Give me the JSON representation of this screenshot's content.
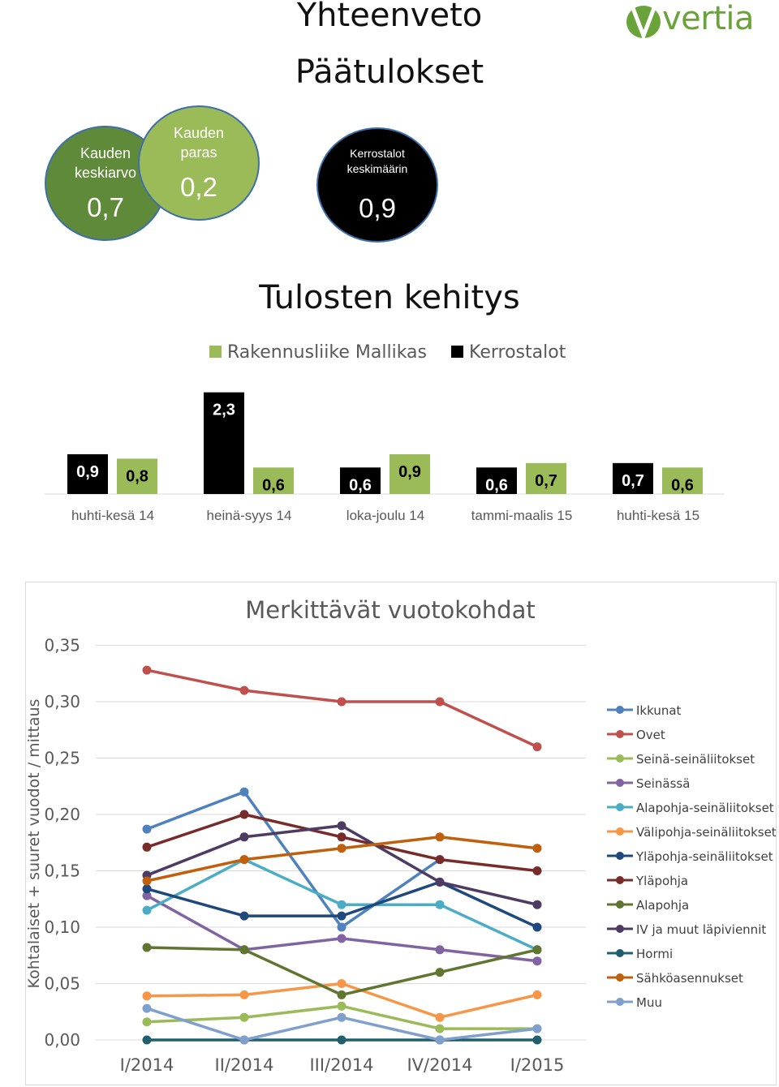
{
  "header": {
    "title": "Yhteenveto",
    "subtitle": "Päätulokset",
    "logo_text": "vertia",
    "brand_color": "#6aa339"
  },
  "circles": {
    "avg": {
      "label_line1": "Kauden",
      "label_line2": "keskiarvo",
      "value": "0,7"
    },
    "best": {
      "label_line1": "Kauden",
      "label_line2": "paras",
      "value": "0,2"
    },
    "kerrostalot": {
      "label_line1": "Kerrostalot",
      "label_line2": "keskimäärin",
      "value": "0,9"
    }
  },
  "chart_data": [
    {
      "type": "bar",
      "title": "Tulosten kehitys",
      "categories": [
        "huhti-kesä 14",
        "heinä-syys 14",
        "loka-joulu 14",
        "tammi-maalis 15",
        "huhti-kesä 15"
      ],
      "series": [
        {
          "name": "Kerrostalot",
          "color": "#000000",
          "values": [
            0.9,
            2.3,
            0.6,
            0.6,
            0.7
          ],
          "labels": [
            "0,9",
            "2,3",
            "0,6",
            "0,6",
            "0,7"
          ]
        },
        {
          "name": "Rakennusliike Mallikas",
          "color": "#9bbb59",
          "values": [
            0.8,
            0.6,
            0.9,
            0.7,
            0.6
          ],
          "labels": [
            "0,8",
            "0,6",
            "0,9",
            "0,7",
            "0,6"
          ]
        }
      ],
      "legend": "top",
      "ylim": [
        0,
        3.2
      ]
    },
    {
      "type": "line",
      "title": "Merkittävät vuotokohdat",
      "ylabel": "Kohtalaiset + suuret vuodot / mittaus",
      "xlabel": "",
      "categories": [
        "I/2014",
        "II/2014",
        "III/2014",
        "IV/2014",
        "I/2015"
      ],
      "ylim": [
        0,
        0.35
      ],
      "yticks": [
        "0,00",
        "0,05",
        "0,10",
        "0,15",
        "0,20",
        "0,25",
        "0,30",
        "0,35"
      ],
      "grid": true,
      "legend": "right",
      "series": [
        {
          "name": "Ikkunat",
          "color": "#4f81bd",
          "values": [
            0.187,
            0.22,
            0.1,
            0.16,
            null
          ]
        },
        {
          "name": "Ovet",
          "color": "#c0504d",
          "values": [
            0.328,
            0.31,
            0.3,
            0.3,
            0.26
          ]
        },
        {
          "name": "Seinä-seinäliitokset",
          "color": "#9bbb59",
          "values": [
            0.016,
            0.02,
            0.03,
            0.01,
            0.01
          ]
        },
        {
          "name": "Seinässä",
          "color": "#8064a2",
          "values": [
            0.128,
            0.08,
            0.09,
            0.08,
            0.07
          ]
        },
        {
          "name": "Alapohja-seinäliitokset",
          "color": "#4bacc6",
          "values": [
            0.115,
            0.16,
            0.12,
            0.12,
            0.08
          ]
        },
        {
          "name": "Välipohja-seinäliitokset",
          "color": "#f79646",
          "values": [
            0.039,
            0.04,
            0.05,
            0.02,
            0.04
          ]
        },
        {
          "name": "Yläpohja-seinäliitokset",
          "color": "#1f497d",
          "values": [
            0.134,
            0.11,
            0.11,
            0.14,
            0.1
          ]
        },
        {
          "name": "Yläpohja",
          "color": "#772c2a",
          "values": [
            0.171,
            0.2,
            0.18,
            0.16,
            0.15
          ]
        },
        {
          "name": "Alapohja",
          "color": "#5f7530",
          "values": [
            0.082,
            0.08,
            0.04,
            0.06,
            0.08
          ]
        },
        {
          "name": "IV ja muut läpiviennit",
          "color": "#4d3b62",
          "values": [
            0.146,
            0.18,
            0.19,
            0.14,
            0.12
          ]
        },
        {
          "name": "Hormi",
          "color": "#215f6e",
          "values": [
            0.0,
            0.0,
            0.0,
            0.0,
            0.0
          ]
        },
        {
          "name": "Sähköasennukset",
          "color": "#c0600c",
          "values": [
            0.141,
            0.16,
            0.17,
            0.18,
            0.17
          ]
        },
        {
          "name": "Muu",
          "color": "#7f9fcd",
          "values": [
            0.028,
            0.0,
            0.02,
            0.0,
            0.01
          ]
        }
      ]
    }
  ]
}
